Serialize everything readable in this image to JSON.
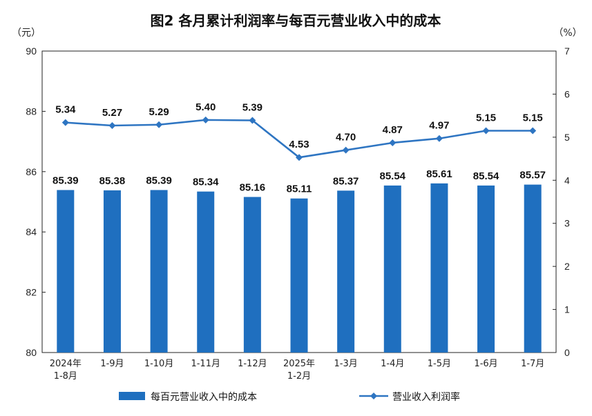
{
  "chart_data": {
    "type": "bar+line",
    "title": "图2  各月累计利润率与每百元营业收入中的成本",
    "left_unit": "（元）",
    "right_unit": "（%）",
    "categories": [
      [
        "2024年",
        "1-8月"
      ],
      [
        "1-9月"
      ],
      [
        "1-10月"
      ],
      [
        "1-11月"
      ],
      [
        "1-12月"
      ],
      [
        "2025年",
        "1-2月"
      ],
      [
        "1-3月"
      ],
      [
        "1-4月"
      ],
      [
        "1-5月"
      ],
      [
        "1-6月"
      ],
      [
        "1-7月"
      ]
    ],
    "left_axis": {
      "min": 80,
      "max": 90,
      "ticks": [
        80,
        82,
        84,
        86,
        88,
        90
      ]
    },
    "right_axis": {
      "min": 0,
      "max": 7,
      "ticks": [
        0,
        1,
        2,
        3,
        4,
        5,
        6,
        7
      ]
    },
    "series": [
      {
        "name": "每百元营业收入中的成本",
        "type": "bar",
        "axis": "left",
        "color": "#1f6fbf",
        "values": [
          85.39,
          85.38,
          85.39,
          85.34,
          85.16,
          85.11,
          85.37,
          85.54,
          85.61,
          85.54,
          85.57
        ]
      },
      {
        "name": "营业收入利润率",
        "type": "line",
        "axis": "right",
        "color": "#2e75c2",
        "values": [
          5.34,
          5.27,
          5.29,
          5.4,
          5.39,
          4.53,
          4.7,
          4.87,
          4.97,
          5.15,
          5.15
        ]
      }
    ],
    "bar_labels": [
      "85.39",
      "85.38",
      "85.39",
      "85.34",
      "85.16",
      "85.11",
      "85.37",
      "85.54",
      "85.61",
      "85.54",
      "85.57"
    ],
    "line_labels": [
      "5.34",
      "5.27",
      "5.29",
      "5.40",
      "5.39",
      "4.53",
      "4.70",
      "4.87",
      "4.97",
      "5.15",
      "5.15"
    ],
    "grid": false,
    "legend_position": "bottom"
  }
}
